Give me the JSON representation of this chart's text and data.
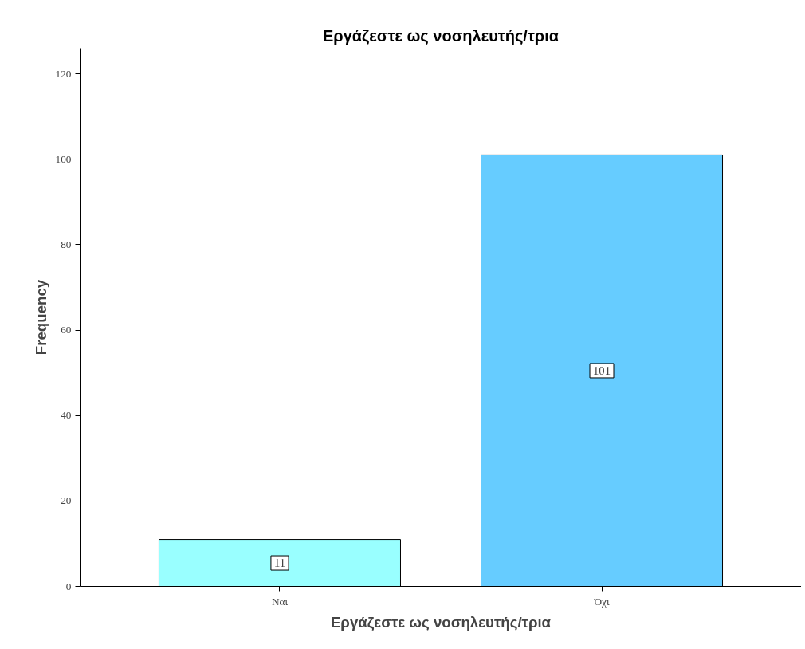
{
  "chart_data": {
    "type": "bar",
    "title": "Εργάζεστε ως νοσηλευτής/τρια",
    "xlabel": "Εργάζεστε ως νοσηλευτής/τρια",
    "ylabel": "Frequency",
    "categories": [
      "Ναι",
      "Όχι"
    ],
    "values": [
      11,
      101
    ],
    "colors": [
      "#99ffff",
      "#66ccff"
    ],
    "ylim": [
      0,
      126
    ],
    "yticks": [
      0,
      20,
      40,
      60,
      80,
      100,
      120
    ],
    "grid": false,
    "data_labels": true
  }
}
